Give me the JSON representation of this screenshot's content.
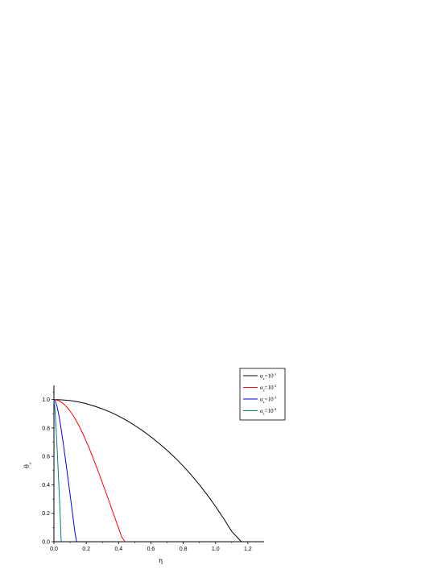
{
  "chart_data": {
    "type": "line",
    "xlabel": "η",
    "ylabel": "θ",
    "ylabel_sub": "c",
    "xlim": [
      0.0,
      1.3
    ],
    "ylim": [
      0.0,
      1.1
    ],
    "xticks": [
      0.0,
      0.2,
      0.4,
      0.6,
      0.8,
      1.0,
      1.2
    ],
    "xtick_labels": [
      "0.0",
      "0.2",
      "0.4",
      "0.6",
      "0.8",
      "1.0",
      "1.2"
    ],
    "yticks": [
      0.0,
      0.2,
      0.4,
      0.6,
      0.8,
      1.0
    ],
    "ytick_labels": [
      "0.0",
      "0.2",
      "0.4",
      "0.6",
      "0.8",
      "1.0"
    ],
    "grid": false,
    "legend_position": "top-right",
    "series": [
      {
        "name": "α",
        "name_sub": "z",
        "name_eq": "=10",
        "name_sup": "-1",
        "color": "#000000",
        "x": [
          0.0,
          0.05,
          0.1,
          0.15,
          0.2,
          0.25,
          0.3,
          0.35,
          0.4,
          0.45,
          0.5,
          0.55,
          0.6,
          0.65,
          0.7,
          0.75,
          0.8,
          0.85,
          0.9,
          0.95,
          1.0,
          1.05,
          1.1,
          1.16
        ],
        "y": [
          1.0,
          0.998,
          0.993,
          0.984,
          0.971,
          0.954,
          0.934,
          0.911,
          0.884,
          0.853,
          0.818,
          0.78,
          0.738,
          0.692,
          0.643,
          0.59,
          0.532,
          0.469,
          0.401,
          0.327,
          0.248,
          0.163,
          0.072,
          0.0
        ]
      },
      {
        "name": "α",
        "name_sub": "z",
        "name_eq": "=10",
        "name_sup": "-2",
        "color": "#ff0000",
        "x": [
          0.0,
          0.03,
          0.06,
          0.09,
          0.12,
          0.15,
          0.18,
          0.21,
          0.24,
          0.27,
          0.3,
          0.33,
          0.36,
          0.39,
          0.42,
          0.44
        ],
        "y": [
          1.0,
          0.992,
          0.97,
          0.934,
          0.886,
          0.826,
          0.757,
          0.68,
          0.596,
          0.507,
          0.414,
          0.319,
          0.223,
          0.127,
          0.032,
          0.0
        ]
      },
      {
        "name": "α",
        "name_sub": "z",
        "name_eq": "=10",
        "name_sup": "-3",
        "color": "#0000ff",
        "x": [
          0.0,
          0.01,
          0.02,
          0.03,
          0.04,
          0.05,
          0.06,
          0.07,
          0.08,
          0.09,
          0.1,
          0.11,
          0.12,
          0.13,
          0.14
        ],
        "y": [
          1.0,
          0.985,
          0.948,
          0.893,
          0.826,
          0.752,
          0.673,
          0.59,
          0.505,
          0.418,
          0.33,
          0.242,
          0.154,
          0.066,
          0.0
        ]
      },
      {
        "name": "α",
        "name_sub": "z",
        "name_eq": "=10",
        "name_sup": "-4",
        "color": "#008080",
        "x": [
          0.0,
          0.005,
          0.01,
          0.015,
          0.02,
          0.025,
          0.03,
          0.035,
          0.04,
          0.045
        ],
        "y": [
          1.0,
          0.95,
          0.86,
          0.76,
          0.65,
          0.53,
          0.41,
          0.28,
          0.15,
          0.0
        ]
      }
    ]
  }
}
